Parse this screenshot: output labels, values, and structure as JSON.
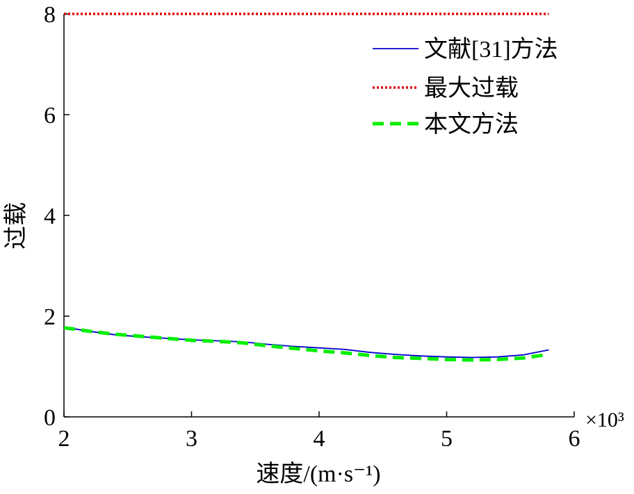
{
  "chart_data": {
    "type": "line",
    "xlabel": "速度/(m·s⁻¹)",
    "ylabel": "过载",
    "x_multiplier_label": "×10³",
    "xlim": [
      2,
      6
    ],
    "ylim": [
      0,
      8
    ],
    "xticks": [
      2,
      3,
      4,
      5,
      6
    ],
    "yticks": [
      0,
      2,
      4,
      6,
      8
    ],
    "grid": false,
    "legend_position": "top-right",
    "series": [
      {
        "name": "文献[31]方法",
        "color": "#0000cc",
        "style": "solid",
        "x": [
          2.0,
          2.2,
          2.4,
          2.6,
          2.8,
          3.0,
          3.2,
          3.4,
          3.6,
          3.8,
          4.0,
          4.2,
          4.4,
          4.6,
          4.8,
          5.0,
          5.2,
          5.4,
          5.6,
          5.8
        ],
        "y": [
          1.78,
          1.7,
          1.63,
          1.59,
          1.56,
          1.53,
          1.51,
          1.49,
          1.44,
          1.4,
          1.37,
          1.34,
          1.28,
          1.24,
          1.21,
          1.19,
          1.18,
          1.19,
          1.23,
          1.33
        ]
      },
      {
        "name": "最大过载",
        "color": "#e00000",
        "style": "dotted",
        "x": [
          2.0,
          5.8
        ],
        "y": [
          8.0,
          8.0
        ]
      },
      {
        "name": "本文方法",
        "color": "#00ee00",
        "style": "dashed",
        "x": [
          2.0,
          2.2,
          2.4,
          2.6,
          2.8,
          3.0,
          3.2,
          3.4,
          3.6,
          3.8,
          4.0,
          4.2,
          4.4,
          4.6,
          4.8,
          5.0,
          5.2,
          5.4,
          5.6,
          5.8
        ],
        "y": [
          1.77,
          1.7,
          1.64,
          1.6,
          1.56,
          1.52,
          1.5,
          1.47,
          1.41,
          1.36,
          1.31,
          1.27,
          1.22,
          1.18,
          1.16,
          1.14,
          1.13,
          1.14,
          1.17,
          1.24
        ]
      }
    ]
  }
}
